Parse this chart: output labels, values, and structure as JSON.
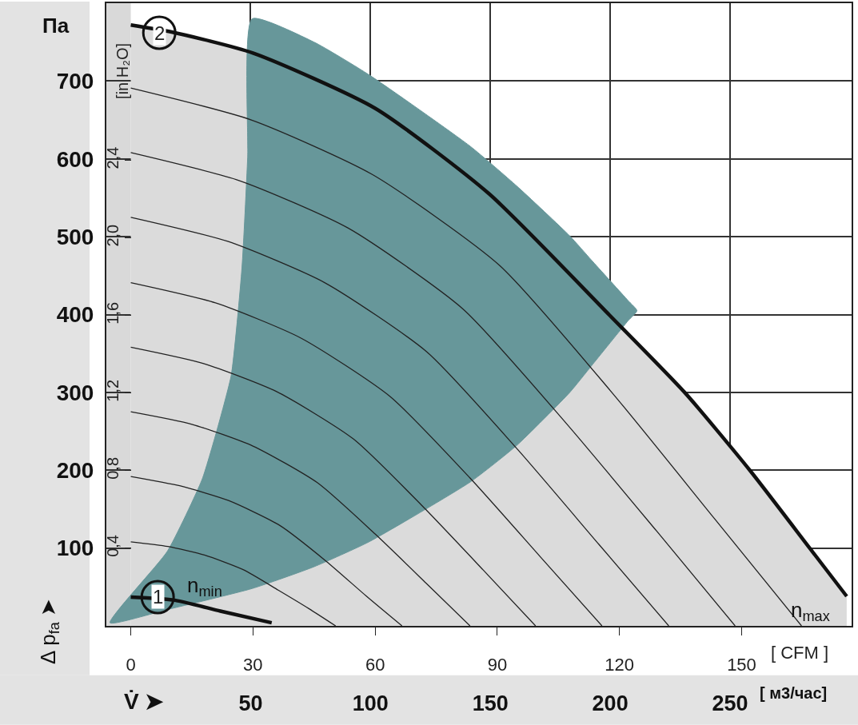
{
  "chart_data": {
    "type": "line",
    "xlabel": "[ CFM ]",
    "x2label": "[ м3/час]",
    "y2label": "[in H₂O]",
    "xlim": [
      -6,
      177
    ],
    "xticks": [
      0,
      30,
      60,
      90,
      120,
      150
    ],
    "x2lim": [
      -10.2,
      300.7
    ],
    "x2ticks": [
      50,
      100,
      150,
      200,
      250
    ],
    "ylim": [
      0,
      800
    ],
    "yticks": [
      100,
      200,
      300,
      400,
      500,
      600,
      700
    ],
    "y2lim": [
      0,
      3.21
    ],
    "y2ticks": [
      {
        "value": 0.4,
        "label": "0,4"
      },
      {
        "value": 0.8,
        "label": "0,8"
      },
      {
        "value": 1.2,
        "label": "1,2"
      },
      {
        "value": 1.6,
        "label": "1,6"
      },
      {
        "value": 2.0,
        "label": "2,0"
      },
      {
        "value": 2.4,
        "label": "2,4"
      }
    ],
    "grid": true,
    "bands": [
      {
        "axis": "x",
        "from": -6,
        "to": 0,
        "color": "#d9d9d9"
      }
    ],
    "annotations": [
      "Па",
      "Δ p$_{fa}$ ➤",
      "V̇ ➤",
      {
        "text": "2",
        "x": 7,
        "y": 762
      },
      {
        "text": "1",
        "x": 6.6,
        "y": 37
      },
      "n$_{min}$",
      "n$_{max}$"
    ],
    "series": [
      {
        "type": "area",
        "color": "#111111",
        "x": [
          0,
          10,
          30,
          60,
          88,
          117.6,
          136,
          152,
          166.7,
          175.8
        ],
        "values": [
          772,
          763,
          736,
          665,
          555,
          399,
          300,
          200,
          100,
          38
        ]
      },
      {
        "type": "area",
        "color": "#67979a",
        "x": [
          -5.1,
          9,
          17.5,
          21.4,
          24.7,
          27.3,
          28.7,
          29.8,
          45,
          58.5,
          83.4,
          94.8,
          107.8,
          113.1,
          122.1,
          124.3,
          122.1,
          113.1,
          107.8,
          94.8,
          83.4,
          58.5,
          45,
          29.8,
          9,
          -5.1
        ],
        "values": [
          4,
          96,
          188,
          256,
          323,
          460,
          602,
          780,
          750,
          708,
          616,
          565,
          501,
          470,
          418,
          405,
          392,
          334,
          300,
          232,
          185,
          108,
          76,
          48,
          21,
          4
        ]
      },
      {
        "color": "#222222",
        "x": [
          0,
          29.6,
          59.3,
          90.6,
          118.6,
          143.3,
          164.7
        ],
        "values": [
          691,
          650,
          580,
          463,
          297,
          138,
          0
        ]
      },
      {
        "color": "#222222",
        "x": [
          0,
          26.7,
          53.4,
          81.6,
          106.8,
          129.1,
          148.4
        ],
        "values": [
          608,
          572,
          511,
          407,
          261,
          122,
          0
        ]
      },
      {
        "color": "#222222",
        "x": [
          0,
          23.8,
          47.6,
          72.7,
          95.1,
          114.9,
          132.1
        ],
        "values": [
          525,
          494,
          441,
          352,
          226,
          105,
          0
        ]
      },
      {
        "color": "#222222",
        "x": [
          0,
          20.8,
          41.7,
          63.6,
          83.3,
          100.7,
          115.7
        ],
        "values": [
          441,
          415,
          370,
          295,
          190,
          88,
          0
        ]
      },
      {
        "color": "#222222",
        "x": [
          0,
          17.9,
          35.8,
          54.7,
          71.6,
          86.5,
          99.4
        ],
        "values": [
          358,
          337,
          301,
          240,
          154,
          72,
          0
        ]
      },
      {
        "color": "#222222",
        "x": [
          0,
          15.0,
          30.0,
          45.8,
          60.0,
          72.5,
          83.3
        ],
        "values": [
          275,
          259,
          231,
          184,
          118,
          55,
          0
        ]
      },
      {
        "color": "#222222",
        "x": [
          0,
          12.0,
          24.0,
          36.6,
          48.0,
          57.9,
          66.6
        ],
        "values": [
          192,
          180,
          161,
          129,
          83,
          38,
          0
        ]
      },
      {
        "color": "#222222",
        "x": [
          0,
          9.1,
          18.1,
          27.7,
          36.2,
          43.8,
          50.3
        ],
        "values": [
          108,
          102,
          91,
          72,
          46,
          22,
          0
        ]
      },
      {
        "color": "#111111",
        "x": [
          0,
          10.8,
          22,
          34.6
        ],
        "values": [
          37,
          33,
          19,
          4
        ]
      }
    ]
  }
}
